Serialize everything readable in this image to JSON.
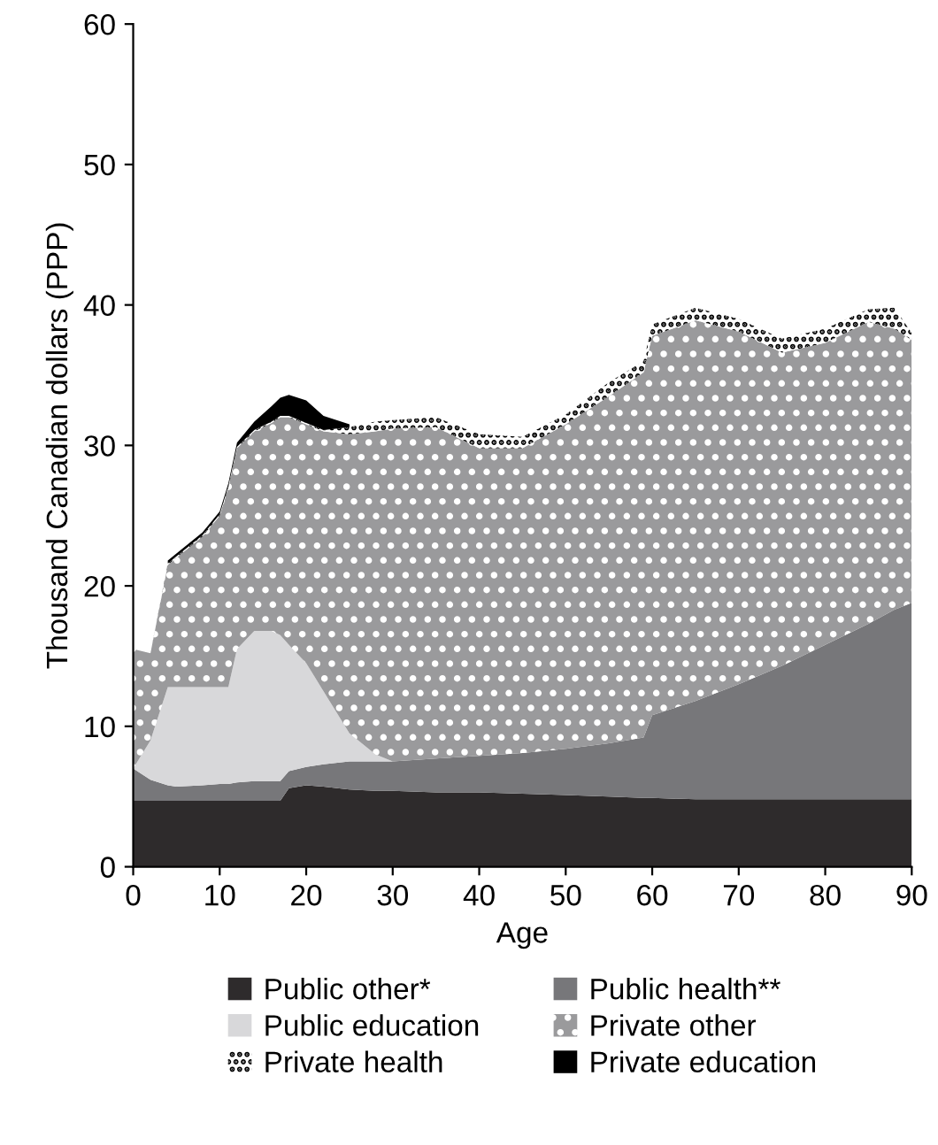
{
  "chart_data": {
    "type": "area",
    "stacked": true,
    "xlabel": "Age",
    "ylabel": "Thousand Canadian dollars (PPP)",
    "x": [
      0,
      2,
      4,
      5,
      8,
      10,
      11,
      12,
      14,
      16,
      17,
      18,
      20,
      22,
      25,
      28,
      30,
      35,
      40,
      45,
      50,
      55,
      59,
      60,
      65,
      70,
      75,
      80,
      85,
      88,
      90
    ],
    "series": [
      {
        "name": "Public other*",
        "color": "#2e2b2c",
        "values": [
          4.7,
          4.7,
          4.7,
          4.7,
          4.7,
          4.7,
          4.7,
          4.7,
          4.7,
          4.7,
          4.7,
          5.6,
          5.8,
          5.7,
          5.5,
          5.4,
          5.4,
          5.3,
          5.3,
          5.2,
          5.1,
          5.0,
          4.9,
          4.9,
          4.8,
          4.8,
          4.8,
          4.8,
          4.8,
          4.8,
          4.8
        ]
      },
      {
        "name": "Public health**",
        "color": "#77777a",
        "values": [
          2.3,
          1.5,
          1.1,
          1.0,
          1.1,
          1.2,
          1.2,
          1.3,
          1.4,
          1.4,
          1.4,
          1.2,
          1.3,
          1.6,
          2.0,
          2.1,
          2.1,
          2.4,
          2.6,
          2.9,
          3.3,
          3.8,
          4.3,
          5.9,
          7.0,
          8.2,
          9.5,
          11.0,
          12.5,
          13.5,
          14.0
        ]
      },
      {
        "name": "Public education",
        "color": "#d8d8da",
        "values": [
          0,
          2.8,
          7.0,
          7.1,
          7.0,
          6.9,
          6.9,
          9.5,
          10.7,
          10.7,
          10.4,
          9.0,
          7.4,
          5.2,
          2.0,
          0.5,
          0,
          0,
          0,
          0,
          0,
          0,
          0,
          0,
          0,
          0,
          0,
          0,
          0,
          0,
          0
        ]
      },
      {
        "name": "Private other",
        "color": "#9a9a9c",
        "values": [
          8.5,
          6.2,
          8.7,
          9.2,
          10.7,
          12.2,
          14.2,
          14.3,
          14.2,
          14.8,
          15.5,
          16.2,
          17.0,
          18.5,
          21.3,
          23.0,
          23.7,
          23.6,
          21.9,
          21.7,
          23.1,
          24.7,
          26.0,
          27.0,
          27.1,
          25.1,
          22.3,
          21.5,
          21.5,
          20.0,
          18.7
        ]
      },
      {
        "name": "Private health",
        "color": "#ffffff",
        "values": [
          0,
          0,
          0.1,
          0.1,
          0.1,
          0.1,
          0.1,
          0.1,
          0.1,
          0.1,
          0.1,
          0.1,
          0.1,
          0.1,
          0.5,
          0.7,
          0.6,
          0.7,
          1.0,
          0.8,
          0.7,
          1.0,
          0.8,
          0.8,
          0.9,
          0.9,
          1.0,
          1.0,
          0.9,
          1.5,
          0.5
        ]
      },
      {
        "name": "Private education",
        "color": "#000000",
        "values": [
          null,
          null,
          0.2,
          0.2,
          0.2,
          0.2,
          0.2,
          0.3,
          0.6,
          1.1,
          1.3,
          1.5,
          1.6,
          1.0,
          0.2,
          null,
          null,
          null,
          null,
          null,
          null,
          null,
          null,
          null,
          null,
          null,
          null,
          null,
          null,
          null,
          null
        ]
      }
    ],
    "xlim": [
      0,
      90
    ],
    "xticks": [
      0,
      10,
      20,
      30,
      40,
      50,
      60,
      70,
      80,
      90
    ],
    "ylim": [
      0,
      60
    ],
    "yticks": [
      0,
      10,
      20,
      30,
      40,
      50,
      60
    ],
    "grid": false,
    "legend": "bottom"
  }
}
